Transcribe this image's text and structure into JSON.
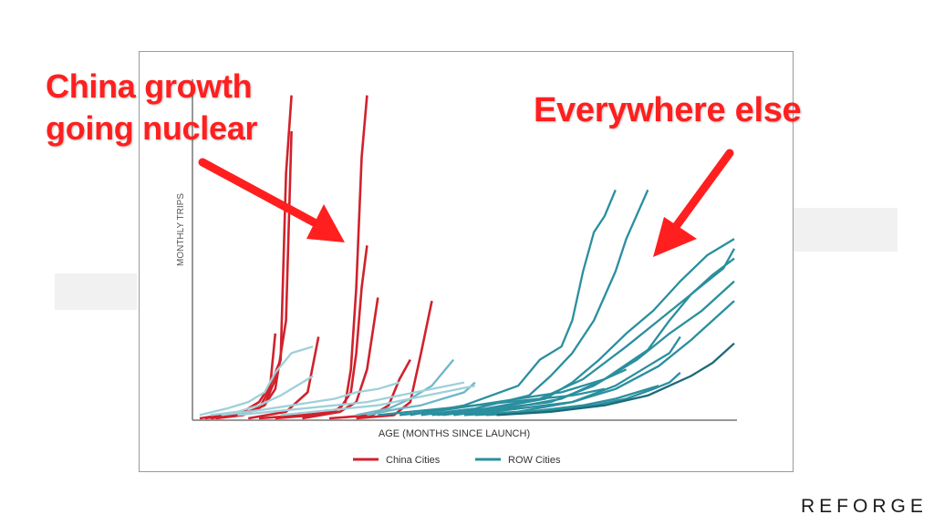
{
  "slide": {
    "callout_china_line1": "China growth",
    "callout_china_line2": "going nuclear",
    "callout_else": "Everywhere else",
    "brand": "REFORGE",
    "accent_color": "#ff1f1f"
  },
  "chart_data": {
    "type": "line",
    "title": "",
    "xlabel": "AGE (MONTHS SINCE LAUNCH)",
    "ylabel": "MONTHLY TRIPS",
    "xlim": [
      0,
      100
    ],
    "ylim": [
      0,
      100
    ],
    "grid": false,
    "legend": "bottom",
    "legend_entries": [
      {
        "label": "China Cities",
        "color": "#d0222c"
      },
      {
        "label": "ROW Cities",
        "color": "#2a8f9e"
      }
    ],
    "series": [
      {
        "group": "China Cities",
        "color": "#d0222c",
        "x": [
          1,
          5,
          9,
          12,
          14,
          16,
          17,
          18
        ],
        "y": [
          0,
          1,
          2,
          5,
          10,
          18,
          75,
          99
        ]
      },
      {
        "group": "China Cities",
        "color": "#d0222c",
        "x": [
          2,
          6,
          10,
          13,
          15,
          17,
          18
        ],
        "y": [
          0,
          1,
          2,
          4,
          9,
          30,
          88
        ]
      },
      {
        "group": "China Cities",
        "color": "#d0222c",
        "x": [
          3,
          8,
          12,
          14,
          15
        ],
        "y": [
          0,
          1,
          3,
          9,
          26
        ]
      },
      {
        "group": "China Cities",
        "color": "#d0222c",
        "x": [
          4,
          9,
          13,
          15,
          16
        ],
        "y": [
          0,
          1,
          4,
          12,
          18
        ]
      },
      {
        "group": "China Cities",
        "color": "#d0222c",
        "x": [
          10,
          17,
          21,
          23
        ],
        "y": [
          0,
          2,
          8,
          25
        ]
      },
      {
        "group": "China Cities",
        "color": "#d0222c",
        "x": [
          12,
          20,
          26,
          28,
          29,
          30,
          31,
          32
        ],
        "y": [
          0,
          1,
          2,
          5,
          15,
          40,
          80,
          99
        ]
      },
      {
        "group": "China Cities",
        "color": "#d0222c",
        "x": [
          15,
          22,
          27,
          29,
          30,
          31,
          32
        ],
        "y": [
          0,
          1,
          3,
          8,
          20,
          40,
          53
        ]
      },
      {
        "group": "China Cities",
        "color": "#d0222c",
        "x": [
          20,
          27,
          30,
          32,
          34
        ],
        "y": [
          0,
          2,
          5,
          15,
          37
        ]
      },
      {
        "group": "China Cities",
        "color": "#d0222c",
        "x": [
          25,
          33,
          36,
          38,
          40
        ],
        "y": [
          0,
          1,
          4,
          12,
          18
        ]
      },
      {
        "group": "China Cities",
        "color": "#d0222c",
        "x": [
          30,
          37,
          40,
          42,
          44
        ],
        "y": [
          0,
          1,
          5,
          20,
          36
        ]
      },
      {
        "group": "ROW Cities",
        "color": "#2a8f9e",
        "x": [
          40,
          50,
          60,
          64,
          68,
          70,
          72,
          74,
          76,
          78
        ],
        "y": [
          1,
          4,
          10,
          18,
          22,
          30,
          45,
          57,
          62,
          70
        ]
      },
      {
        "group": "ROW Cities",
        "color": "#2a8f9e",
        "x": [
          42,
          52,
          62,
          66,
          70,
          74,
          78,
          80,
          84
        ],
        "y": [
          1,
          3,
          7,
          13,
          20,
          30,
          45,
          55,
          70
        ]
      },
      {
        "group": "ROW Cities",
        "color": "#2a8f9e",
        "x": [
          45,
          55,
          65,
          70,
          75,
          80,
          85,
          90,
          95,
          100
        ],
        "y": [
          1,
          3,
          6,
          11,
          18,
          26,
          33,
          42,
          50,
          55
        ]
      },
      {
        "group": "ROW Cities",
        "color": "#2a8f9e",
        "x": [
          44,
          54,
          64,
          72,
          80,
          86,
          92,
          98,
          100
        ],
        "y": [
          1,
          3,
          6,
          12,
          22,
          30,
          38,
          46,
          52
        ]
      },
      {
        "group": "ROW Cities",
        "color": "#2a8f9e",
        "x": [
          48,
          58,
          68,
          76,
          84,
          88,
          92,
          96,
          100
        ],
        "y": [
          1,
          3,
          6,
          12,
          21,
          30,
          38,
          44,
          49
        ]
      },
      {
        "group": "ROW Cities",
        "color": "#2a8f9e",
        "x": [
          46,
          56,
          66,
          74,
          82,
          88,
          94,
          100
        ],
        "y": [
          1,
          3,
          5,
          10,
          18,
          26,
          33,
          42
        ]
      },
      {
        "group": "ROW Cities",
        "color": "#2a8f9e",
        "x": [
          50,
          60,
          70,
          78,
          86,
          92,
          96,
          100
        ],
        "y": [
          1,
          3,
          5,
          9,
          16,
          24,
          30,
          36
        ]
      },
      {
        "group": "ROW Cities",
        "color": "#2a8f9e",
        "x": [
          50,
          60,
          70,
          78,
          84,
          88,
          90
        ],
        "y": [
          1,
          2,
          5,
          10,
          16,
          20,
          25
        ]
      },
      {
        "group": "ROW Cities",
        "color": "#2a8f9e",
        "x": [
          52,
          62,
          72,
          78,
          82,
          86
        ],
        "y": [
          1,
          2,
          4,
          6,
          8,
          10
        ]
      },
      {
        "group": "ROW Cities",
        "color": "#2a8f9e",
        "x": [
          54,
          64,
          74,
          80,
          85,
          88,
          90
        ],
        "y": [
          1,
          2,
          4,
          6,
          9,
          11,
          14
        ]
      },
      {
        "group": "ROW Cities",
        "color": "#1d6a78",
        "x": [
          56,
          66,
          76,
          84,
          88,
          92,
          96,
          100
        ],
        "y": [
          1,
          2,
          4,
          7,
          10,
          13,
          17,
          23
        ]
      },
      {
        "group": "ROW Cities",
        "color": "#2a8f9e",
        "x": [
          38,
          44,
          48,
          52,
          56,
          60,
          64,
          68,
          72,
          76,
          80
        ],
        "y": [
          1,
          2,
          3,
          4,
          5,
          6,
          7,
          8,
          10,
          12,
          15
        ]
      },
      {
        "group": "ROW Cities",
        "color": "#2a8f9e",
        "x": [
          34,
          40,
          46,
          52,
          58,
          64,
          70,
          76
        ],
        "y": [
          1,
          2,
          3,
          4,
          5,
          6,
          7,
          9
        ]
      },
      {
        "group": "ROW Cities",
        "color": "#6bb8c5",
        "x": [
          30,
          36,
          40,
          44,
          48
        ],
        "y": [
          1,
          3,
          6,
          10,
          18
        ]
      },
      {
        "group": "ROW Cities",
        "color": "#6bb8c5",
        "x": [
          32,
          38,
          42,
          46,
          50,
          52
        ],
        "y": [
          1,
          3,
          4,
          6,
          8,
          11
        ]
      },
      {
        "group": "ROW Cities",
        "color": "#9fd0d9",
        "x": [
          1,
          6,
          10,
          13,
          15,
          18,
          22
        ],
        "y": [
          1,
          3,
          5,
          8,
          14,
          20,
          22
        ]
      },
      {
        "group": "ROW Cities",
        "color": "#9fd0d9",
        "x": [
          3,
          8,
          12,
          16,
          20,
          22
        ],
        "y": [
          1,
          2,
          4,
          7,
          11,
          13
        ]
      },
      {
        "group": "ROW Cities",
        "color": "#9fd0d9",
        "x": [
          5,
          10,
          14,
          18,
          22,
          26,
          30,
          34,
          38
        ],
        "y": [
          1,
          2,
          3,
          4,
          5,
          6,
          8,
          9,
          11
        ]
      },
      {
        "group": "ROW Cities",
        "color": "#9fd0d9",
        "x": [
          8,
          14,
          20,
          26,
          32,
          38,
          44,
          50
        ],
        "y": [
          1,
          2,
          3,
          4,
          5,
          7,
          9,
          11
        ]
      },
      {
        "group": "ROW Cities",
        "color": "#9fd0d9",
        "x": [
          16,
          22,
          28,
          34,
          40,
          46,
          52
        ],
        "y": [
          1,
          2,
          3,
          4,
          6,
          8,
          10
        ]
      }
    ]
  }
}
